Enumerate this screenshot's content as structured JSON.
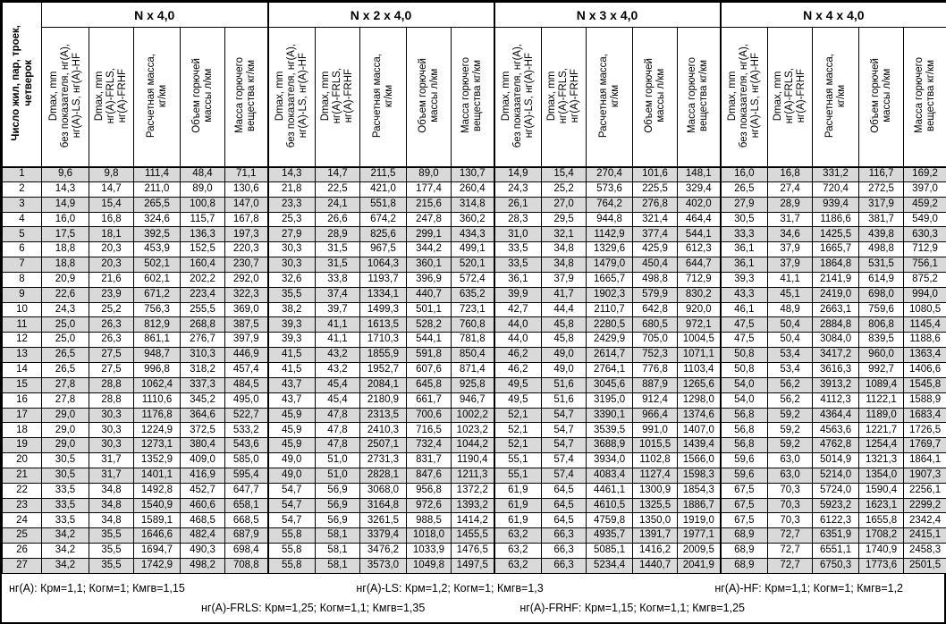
{
  "table": {
    "row_header": "Число жил, пар, троек,\nчетверок",
    "groups": [
      {
        "title": "N x 4,0"
      },
      {
        "title": "N x 2 x 4,0"
      },
      {
        "title": "N x 3 x 4,0"
      },
      {
        "title": "N x 4 x 4,0"
      }
    ],
    "sub_headers": [
      "Dmax, mm\nбез показателя, нг(A),\nнг(A)-LS, нг(A)-HF",
      "Dmax, mm\nнг(A)-FRLS,\nнг(A)-FRHF",
      "Расчетная масса,\nкг/км",
      "Объем горючей\nмассы л/км",
      "Масса горючего\nвещества кг/км"
    ],
    "rows": [
      {
        "n": "1",
        "values": [
          "9,6",
          "9,8",
          "111,4",
          "48,4",
          "71,1",
          "14,3",
          "14,7",
          "211,5",
          "89,0",
          "130,7",
          "14,9",
          "15,4",
          "270,4",
          "101,6",
          "148,1",
          "16,0",
          "16,8",
          "331,2",
          "116,7",
          "169,2"
        ]
      },
      {
        "n": "2",
        "values": [
          "14,3",
          "14,7",
          "211,0",
          "89,0",
          "130,6",
          "21,8",
          "22,5",
          "421,0",
          "177,4",
          "260,4",
          "24,3",
          "25,2",
          "573,6",
          "225,5",
          "329,4",
          "26,5",
          "27,4",
          "720,4",
          "272,5",
          "397,0"
        ]
      },
      {
        "n": "3",
        "values": [
          "14,9",
          "15,4",
          "265,5",
          "100,8",
          "147,0",
          "23,3",
          "24,1",
          "551,8",
          "215,6",
          "314,8",
          "26,1",
          "27,0",
          "764,2",
          "276,8",
          "402,0",
          "27,9",
          "28,9",
          "939,4",
          "317,9",
          "459,2"
        ]
      },
      {
        "n": "4",
        "values": [
          "16,0",
          "16,8",
          "324,6",
          "115,7",
          "167,8",
          "25,3",
          "26,6",
          "674,2",
          "247,8",
          "360,2",
          "28,3",
          "29,5",
          "944,8",
          "321,4",
          "464,4",
          "30,5",
          "31,7",
          "1186,6",
          "381,7",
          "549,0"
        ]
      },
      {
        "n": "5",
        "values": [
          "17,5",
          "18,1",
          "392,5",
          "136,3",
          "197,3",
          "27,9",
          "28,9",
          "825,6",
          "299,1",
          "434,3",
          "31,0",
          "32,1",
          "1142,9",
          "377,4",
          "544,1",
          "33,3",
          "34,6",
          "1425,5",
          "439,8",
          "630,3"
        ]
      },
      {
        "n": "6",
        "values": [
          "18,8",
          "20,3",
          "453,9",
          "152,5",
          "220,3",
          "30,3",
          "31,5",
          "967,5",
          "344,2",
          "499,1",
          "33,5",
          "34,8",
          "1329,6",
          "425,9",
          "612,3",
          "36,1",
          "37,9",
          "1665,7",
          "498,8",
          "712,9"
        ]
      },
      {
        "n": "7",
        "values": [
          "18,8",
          "20,3",
          "502,1",
          "160,4",
          "230,7",
          "30,3",
          "31,5",
          "1064,3",
          "360,1",
          "520,1",
          "33,5",
          "34,8",
          "1479,0",
          "450,4",
          "644,7",
          "36,1",
          "37,9",
          "1864,8",
          "531,5",
          "756,1"
        ]
      },
      {
        "n": "8",
        "values": [
          "20,9",
          "21,6",
          "602,1",
          "202,2",
          "292,0",
          "32,6",
          "33,8",
          "1193,7",
          "396,9",
          "572,4",
          "36,1",
          "37,9",
          "1665,7",
          "498,8",
          "712,9",
          "39,3",
          "41,1",
          "2141,9",
          "614,9",
          "875,2"
        ]
      },
      {
        "n": "9",
        "values": [
          "22,6",
          "23,9",
          "671,2",
          "223,4",
          "322,3",
          "35,5",
          "37,4",
          "1334,1",
          "440,7",
          "635,2",
          "39,9",
          "41,7",
          "1902,3",
          "579,9",
          "830,2",
          "43,3",
          "45,1",
          "2419,0",
          "698,0",
          "994,0"
        ]
      },
      {
        "n": "10",
        "values": [
          "24,3",
          "25,2",
          "756,3",
          "255,5",
          "369,0",
          "38,2",
          "39,7",
          "1499,3",
          "501,1",
          "723,1",
          "42,7",
          "44,4",
          "2110,7",
          "642,8",
          "920,0",
          "46,1",
          "48,9",
          "2663,1",
          "759,6",
          "1080,5"
        ]
      },
      {
        "n": "11",
        "values": [
          "25,0",
          "26,3",
          "812,9",
          "268,8",
          "387,5",
          "39,3",
          "41,1",
          "1613,5",
          "528,2",
          "760,8",
          "44,0",
          "45,8",
          "2280,5",
          "680,5",
          "972,1",
          "47,5",
          "50,4",
          "2884,8",
          "806,8",
          "1145,4"
        ]
      },
      {
        "n": "12",
        "values": [
          "25,0",
          "26,3",
          "861,1",
          "276,7",
          "397,9",
          "39,3",
          "41,1",
          "1710,3",
          "544,1",
          "781,8",
          "44,0",
          "45,8",
          "2429,9",
          "705,0",
          "1004,5",
          "47,5",
          "50,4",
          "3084,0",
          "839,5",
          "1188,6"
        ]
      },
      {
        "n": "13",
        "values": [
          "26,5",
          "27,5",
          "948,7",
          "310,3",
          "446,9",
          "41,5",
          "43,2",
          "1855,9",
          "591,8",
          "850,4",
          "46,2",
          "49,0",
          "2614,7",
          "752,3",
          "1071,1",
          "50,8",
          "53,4",
          "3417,2",
          "960,0",
          "1363,4"
        ]
      },
      {
        "n": "14",
        "values": [
          "26,5",
          "27,5",
          "996,8",
          "318,2",
          "457,4",
          "41,5",
          "43,2",
          "1952,7",
          "607,6",
          "871,4",
          "46,2",
          "49,0",
          "2764,1",
          "776,8",
          "1103,4",
          "50,8",
          "53,4",
          "3616,3",
          "992,7",
          "1406,6"
        ]
      },
      {
        "n": "15",
        "values": [
          "27,8",
          "28,8",
          "1062,4",
          "337,3",
          "484,5",
          "43,7",
          "45,4",
          "2084,1",
          "645,8",
          "925,8",
          "49,5",
          "51,6",
          "3045,6",
          "887,9",
          "1265,6",
          "54,0",
          "56,2",
          "3913,2",
          "1089,4",
          "1545,8"
        ]
      },
      {
        "n": "16",
        "values": [
          "27,8",
          "28,8",
          "1110,6",
          "345,2",
          "495,0",
          "43,7",
          "45,4",
          "2180,9",
          "661,7",
          "946,7",
          "49,5",
          "51,6",
          "3195,0",
          "912,4",
          "1298,0",
          "54,0",
          "56,2",
          "4112,3",
          "1122,1",
          "1588,9"
        ]
      },
      {
        "n": "17",
        "values": [
          "29,0",
          "30,3",
          "1176,8",
          "364,6",
          "522,7",
          "45,9",
          "47,8",
          "2313,5",
          "700,6",
          "1002,2",
          "52,1",
          "54,7",
          "3390,1",
          "966,4",
          "1374,6",
          "56,8",
          "59,2",
          "4364,4",
          "1189,0",
          "1683,4"
        ]
      },
      {
        "n": "18",
        "values": [
          "29,0",
          "30,3",
          "1224,9",
          "372,5",
          "533,2",
          "45,9",
          "47,8",
          "2410,3",
          "716,5",
          "1023,2",
          "52,1",
          "54,7",
          "3539,5",
          "991,0",
          "1407,0",
          "56,8",
          "59,2",
          "4563,6",
          "1221,7",
          "1726,5"
        ]
      },
      {
        "n": "19",
        "values": [
          "29,0",
          "30,3",
          "1273,1",
          "380,4",
          "543,6",
          "45,9",
          "47,8",
          "2507,1",
          "732,4",
          "1044,2",
          "52,1",
          "54,7",
          "3688,9",
          "1015,5",
          "1439,4",
          "56,8",
          "59,2",
          "4762,8",
          "1254,4",
          "1769,7"
        ]
      },
      {
        "n": "20",
        "values": [
          "30,5",
          "31,7",
          "1352,9",
          "409,0",
          "585,0",
          "49,0",
          "51,0",
          "2731,3",
          "831,7",
          "1190,4",
          "55,1",
          "57,4",
          "3934,0",
          "1102,8",
          "1566,0",
          "59,6",
          "63,0",
          "5014,9",
          "1321,3",
          "1864,1"
        ]
      },
      {
        "n": "21",
        "values": [
          "30,5",
          "31,7",
          "1401,1",
          "416,9",
          "595,4",
          "49,0",
          "51,0",
          "2828,1",
          "847,6",
          "1211,3",
          "55,1",
          "57,4",
          "4083,4",
          "1127,4",
          "1598,3",
          "59,6",
          "63,0",
          "5214,0",
          "1354,0",
          "1907,3"
        ]
      },
      {
        "n": "22",
        "values": [
          "33,5",
          "34,8",
          "1492,8",
          "452,7",
          "647,7",
          "54,7",
          "56,9",
          "3068,0",
          "956,8",
          "1372,2",
          "61,9",
          "64,5",
          "4461,1",
          "1300,9",
          "1854,3",
          "67,5",
          "70,3",
          "5724,0",
          "1590,4",
          "2256,1"
        ]
      },
      {
        "n": "23",
        "values": [
          "33,5",
          "34,8",
          "1540,9",
          "460,6",
          "658,1",
          "54,7",
          "56,9",
          "3164,8",
          "972,6",
          "1393,2",
          "61,9",
          "64,5",
          "4610,5",
          "1325,5",
          "1886,7",
          "67,5",
          "70,3",
          "5923,2",
          "1623,1",
          "2299,2"
        ]
      },
      {
        "n": "24",
        "values": [
          "33,5",
          "34,8",
          "1589,1",
          "468,5",
          "668,5",
          "54,7",
          "56,9",
          "3261,5",
          "988,5",
          "1414,2",
          "61,9",
          "64,5",
          "4759,8",
          "1350,0",
          "1919,0",
          "67,5",
          "70,3",
          "6122,3",
          "1655,8",
          "2342,4"
        ]
      },
      {
        "n": "25",
        "values": [
          "34,2",
          "35,5",
          "1646,6",
          "482,4",
          "687,9",
          "55,8",
          "58,1",
          "3379,4",
          "1018,0",
          "1455,5",
          "63,2",
          "66,3",
          "4935,7",
          "1391,7",
          "1977,1",
          "68,9",
          "72,7",
          "6351,9",
          "1708,2",
          "2415,1"
        ]
      },
      {
        "n": "26",
        "values": [
          "34,2",
          "35,5",
          "1694,7",
          "490,3",
          "698,4",
          "55,8",
          "58,1",
          "3476,2",
          "1033,9",
          "1476,5",
          "63,2",
          "66,3",
          "5085,1",
          "1416,2",
          "2009,5",
          "68,9",
          "72,7",
          "6551,1",
          "1740,9",
          "2458,3"
        ]
      },
      {
        "n": "27",
        "values": [
          "34,2",
          "35,5",
          "1742,9",
          "498,2",
          "708,8",
          "55,8",
          "58,1",
          "3573,0",
          "1049,8",
          "1497,5",
          "63,2",
          "66,3",
          "5234,4",
          "1440,7",
          "2041,9",
          "68,9",
          "72,7",
          "6750,3",
          "1773,6",
          "2501,5"
        ]
      }
    ]
  },
  "footer": {
    "line1": [
      "нг(A): Крм=1,1;  Когм=1;  Кмгв=1,15",
      "нг(A)-LS: Крм=1,2;  Когм=1;  Кмгв=1,3",
      "нг(A)-HF: Крм=1,1;  Когм=1;  Кмгв=1,2"
    ],
    "line2": [
      "нг(A)-FRLS: Крм=1,25;  Когм=1,1;  Кмгв=1,35",
      "нг(A)-FRHF: Крм=1,15;  Когм=1,1;  Кмгв=1,25"
    ]
  },
  "colors": {
    "stripe": "#d9d9d9",
    "border": "#000000",
    "background": "#ffffff"
  },
  "layout": {
    "first_col_width": 44,
    "group_col_widths": [
      53,
      50,
      52,
      50,
      48
    ]
  }
}
